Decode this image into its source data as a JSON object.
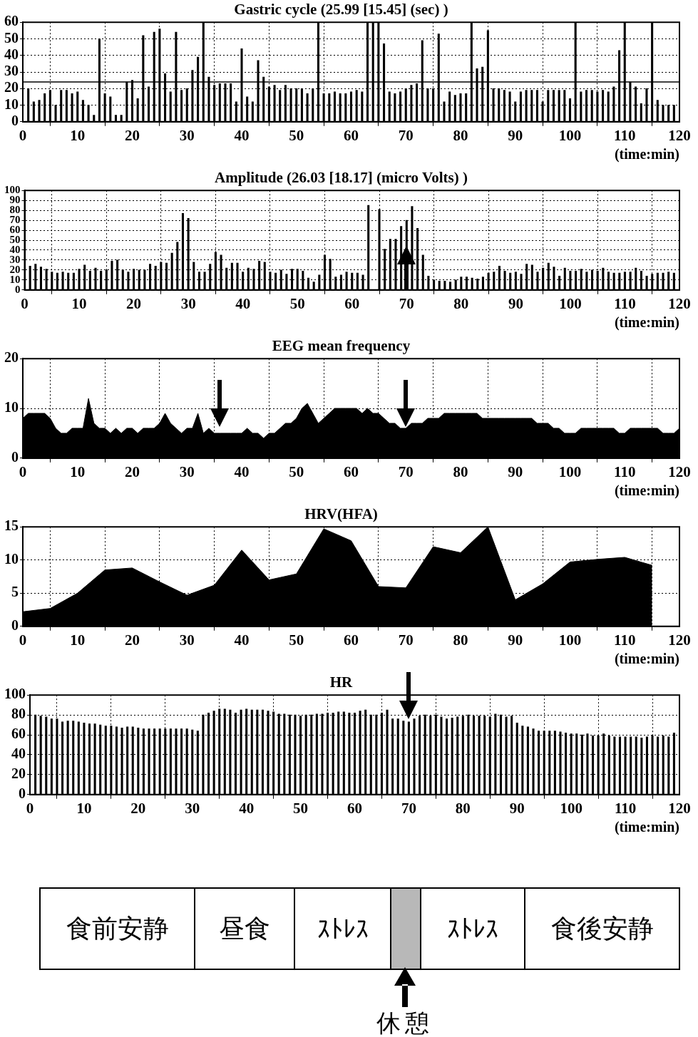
{
  "chart_data": [
    {
      "type": "bar",
      "title": "Gastric cycle (25.99 [15.45] (sec) )",
      "xlabel": "(time:min)",
      "color": "#000000",
      "grid": true,
      "legend": false,
      "xlim": [
        0,
        120
      ],
      "xticks": [
        0,
        10,
        20,
        30,
        40,
        50,
        60,
        70,
        80,
        90,
        100,
        110,
        120
      ],
      "ylim": [
        0,
        60
      ],
      "yticks": [
        0,
        10,
        20,
        30,
        40,
        50,
        60
      ],
      "ref_lines": [
        {
          "axis": "y",
          "value": 24,
          "color": "#000000"
        }
      ],
      "x": [
        1,
        2,
        3,
        4,
        5,
        6,
        7,
        8,
        9,
        10,
        11,
        12,
        13,
        14,
        15,
        16,
        17,
        18,
        19,
        20,
        21,
        22,
        23,
        24,
        25,
        26,
        27,
        28,
        29,
        30,
        31,
        32,
        33,
        34,
        35,
        36,
        37,
        38,
        39,
        40,
        41,
        42,
        43,
        44,
        45,
        46,
        47,
        48,
        49,
        50,
        51,
        52,
        53,
        54,
        55,
        56,
        57,
        58,
        59,
        60,
        61,
        62,
        63,
        64,
        65,
        66,
        67,
        68,
        69,
        70,
        71,
        72,
        73,
        74,
        75,
        76,
        77,
        78,
        79,
        80,
        81,
        82,
        83,
        84,
        85,
        86,
        87,
        88,
        89,
        90,
        91,
        92,
        93,
        94,
        95,
        96,
        97,
        98,
        99,
        100,
        101,
        102,
        103,
        104,
        105,
        106,
        107,
        108,
        109,
        110,
        111,
        112,
        113,
        114,
        115,
        116,
        117,
        118,
        119
      ],
      "values": [
        20,
        12,
        13,
        17,
        19,
        10,
        19,
        19,
        17,
        18,
        13,
        10,
        4,
        50,
        17,
        15,
        4,
        4,
        24,
        25,
        14,
        52,
        21,
        54,
        56,
        29,
        18,
        54,
        19,
        20,
        31,
        39,
        60,
        27,
        22,
        23,
        23,
        23,
        12,
        44,
        15,
        12,
        37,
        27,
        21,
        22,
        19,
        22,
        20,
        20,
        20,
        17,
        20,
        60,
        17,
        17,
        18,
        17,
        17,
        18,
        19,
        18,
        60,
        60,
        60,
        47,
        18,
        17,
        18,
        20,
        22,
        23,
        49,
        20,
        20,
        53,
        12,
        18,
        16,
        17,
        17,
        60,
        32,
        33,
        55,
        20,
        20,
        19,
        18,
        12,
        18,
        19,
        19,
        19,
        12,
        19,
        19,
        19,
        19,
        14,
        60,
        18,
        19,
        19,
        18,
        19,
        18,
        21,
        43,
        60,
        24,
        21,
        11,
        20,
        60,
        13,
        10,
        10,
        10
      ]
    },
    {
      "type": "bar",
      "title": "Amplitude (26.03 [18.17] (micro Volts) )",
      "xlabel": "(time:min)",
      "color": "#000000",
      "grid": true,
      "legend": false,
      "xlim": [
        0,
        120
      ],
      "xticks": [
        0,
        10,
        20,
        30,
        40,
        50,
        60,
        70,
        80,
        90,
        100,
        110,
        120
      ],
      "ylim": [
        0,
        100
      ],
      "yticks": [
        0,
        10,
        20,
        30,
        40,
        50,
        60,
        70,
        80,
        90,
        100
      ],
      "x": [
        1,
        2,
        3,
        4,
        5,
        6,
        7,
        8,
        9,
        10,
        11,
        12,
        13,
        14,
        15,
        16,
        17,
        18,
        19,
        20,
        21,
        22,
        23,
        24,
        25,
        26,
        27,
        28,
        29,
        30,
        31,
        32,
        33,
        34,
        35,
        36,
        37,
        38,
        39,
        40,
        41,
        42,
        43,
        44,
        45,
        46,
        47,
        48,
        49,
        50,
        51,
        52,
        53,
        54,
        55,
        56,
        57,
        58,
        59,
        60,
        61,
        62,
        63,
        64,
        65,
        66,
        67,
        68,
        69,
        70,
        71,
        72,
        73,
        74,
        75,
        76,
        77,
        78,
        79,
        80,
        81,
        82,
        83,
        84,
        85,
        86,
        87,
        88,
        89,
        90,
        91,
        92,
        93,
        94,
        95,
        96,
        97,
        98,
        99,
        100,
        101,
        102,
        103,
        104,
        105,
        106,
        107,
        108,
        109,
        110,
        111,
        112,
        113,
        114,
        115,
        116,
        117,
        118,
        119
      ],
      "values": [
        24,
        26,
        23,
        21,
        18,
        17,
        18,
        17,
        17,
        21,
        25,
        19,
        22,
        19,
        20,
        29,
        30,
        20,
        18,
        21,
        20,
        20,
        26,
        24,
        28,
        27,
        37,
        48,
        77,
        72,
        28,
        18,
        18,
        26,
        38,
        35,
        22,
        27,
        27,
        18,
        22,
        21,
        29,
        28,
        18,
        17,
        20,
        16,
        21,
        21,
        19,
        12,
        8,
        15,
        35,
        31,
        13,
        15,
        18,
        17,
        17,
        15,
        85,
        null,
        81,
        41,
        51,
        51,
        64,
        70,
        84,
        62,
        35,
        14,
        10,
        9,
        9,
        8,
        10,
        13,
        13,
        12,
        11,
        13,
        17,
        18,
        24,
        19,
        17,
        18,
        16,
        26,
        25,
        18,
        22,
        27,
        23,
        14,
        22,
        19,
        19,
        21,
        18,
        20,
        19,
        22,
        18,
        17,
        17,
        18,
        18,
        22,
        19,
        14,
        16,
        17,
        17,
        18,
        17
      ]
    },
    {
      "type": "area",
      "title": "EEG mean frequency",
      "xlabel": "(time:min)",
      "color": "#000000",
      "grid": true,
      "legend": false,
      "xlim": [
        0,
        120
      ],
      "xticks": [
        0,
        10,
        20,
        30,
        40,
        50,
        60,
        70,
        80,
        90,
        100,
        110,
        120
      ],
      "ylim": [
        0,
        20
      ],
      "yticks": [
        0,
        10,
        20
      ],
      "x": [
        0,
        1,
        2,
        3,
        4,
        5,
        6,
        7,
        8,
        9,
        10,
        11,
        12,
        13,
        14,
        15,
        16,
        17,
        18,
        19,
        20,
        21,
        22,
        23,
        24,
        25,
        26,
        27,
        28,
        29,
        30,
        31,
        32,
        33,
        34,
        35,
        36,
        37,
        38,
        39,
        40,
        41,
        42,
        43,
        44,
        45,
        46,
        47,
        48,
        49,
        50,
        51,
        52,
        53,
        54,
        55,
        56,
        57,
        58,
        59,
        60,
        61,
        62,
        63,
        64,
        65,
        66,
        67,
        68,
        69,
        70,
        71,
        72,
        73,
        74,
        75,
        76,
        77,
        78,
        79,
        80,
        81,
        82,
        83,
        84,
        85,
        86,
        87,
        88,
        89,
        90,
        91,
        92,
        93,
        94,
        95,
        96,
        97,
        98,
        99,
        100,
        101,
        102,
        103,
        104,
        105,
        106,
        107,
        108,
        109,
        110,
        111,
        112,
        113,
        114,
        115,
        116,
        117,
        118,
        119,
        120
      ],
      "values": [
        8,
        9,
        9,
        9,
        9,
        8,
        6,
        5,
        5,
        6,
        6,
        6,
        12,
        7,
        6,
        6,
        5,
        6,
        5,
        6,
        6,
        5,
        6,
        6,
        6,
        7,
        9,
        7,
        6,
        5,
        6,
        6,
        9,
        5,
        6,
        5,
        5,
        5,
        5,
        5,
        5,
        6,
        5,
        5,
        4,
        5,
        5,
        6,
        7,
        7,
        8,
        10,
        11,
        9,
        7,
        8,
        9,
        10,
        10,
        10,
        10,
        10,
        9,
        10,
        9,
        9,
        8,
        7,
        7,
        6,
        6,
        7,
        7,
        7,
        8,
        8,
        8,
        9,
        9,
        9,
        9,
        9,
        9,
        9,
        8,
        8,
        8,
        8,
        8,
        8,
        8,
        8,
        8,
        8,
        7,
        7,
        7,
        6,
        6,
        5,
        5,
        5,
        6,
        6,
        6,
        6,
        6,
        6,
        6,
        5,
        5,
        6,
        6,
        6,
        6,
        6,
        6,
        5,
        5,
        5,
        6
      ]
    },
    {
      "type": "area",
      "title": "HRV(HFA)",
      "xlabel": "(time:min)",
      "color": "#000000",
      "grid": true,
      "legend": false,
      "xlim": [
        0,
        120
      ],
      "xticks": [
        0,
        10,
        20,
        30,
        40,
        50,
        60,
        70,
        80,
        90,
        100,
        110,
        120
      ],
      "ylim": [
        0,
        15
      ],
      "yticks": [
        0,
        5,
        10,
        15
      ],
      "x": [
        0,
        5,
        10,
        15,
        20,
        25,
        30,
        35,
        40,
        45,
        50,
        55,
        60,
        65,
        70,
        75,
        80,
        85,
        90,
        95,
        100,
        105,
        110,
        115
      ],
      "values": [
        2.2,
        2.7,
        5,
        8.5,
        8.8,
        6.7,
        4.7,
        6.2,
        11.5,
        7,
        7.9,
        14.7,
        12.9,
        6,
        5.8,
        12,
        11.1,
        15,
        4,
        6.4,
        9.7,
        10.1,
        10.4,
        9.2
      ]
    },
    {
      "type": "bar",
      "title": "HR",
      "xlabel": "(time:min)",
      "color": "#000000",
      "grid": true,
      "legend": false,
      "xlim": [
        0,
        120
      ],
      "xticks": [
        0,
        10,
        20,
        30,
        40,
        50,
        60,
        70,
        80,
        90,
        100,
        110,
        120
      ],
      "ylim": [
        0,
        100
      ],
      "yticks": [
        0,
        20,
        40,
        60,
        80,
        100
      ],
      "x": [
        1,
        2,
        3,
        4,
        5,
        6,
        7,
        8,
        9,
        10,
        11,
        12,
        13,
        14,
        15,
        16,
        17,
        18,
        19,
        20,
        21,
        22,
        23,
        24,
        25,
        26,
        27,
        28,
        29,
        30,
        31,
        32,
        33,
        34,
        35,
        36,
        37,
        38,
        39,
        40,
        41,
        42,
        43,
        44,
        45,
        46,
        47,
        48,
        49,
        50,
        51,
        52,
        53,
        54,
        55,
        56,
        57,
        58,
        59,
        60,
        61,
        62,
        63,
        64,
        65,
        66,
        67,
        68,
        69,
        70,
        71,
        72,
        73,
        74,
        75,
        76,
        77,
        78,
        79,
        80,
        81,
        82,
        83,
        84,
        85,
        86,
        87,
        88,
        89,
        90,
        91,
        92,
        93,
        94,
        95,
        96,
        97,
        98,
        99,
        100,
        101,
        102,
        103,
        104,
        105,
        106,
        107,
        108,
        109,
        110,
        111,
        112,
        113,
        114,
        115,
        116,
        117,
        118,
        119
      ],
      "values": [
        80,
        79,
        78,
        76,
        76,
        73,
        74,
        74,
        73,
        72,
        71,
        71,
        70,
        69,
        69,
        68,
        67,
        68,
        68,
        67,
        66,
        66,
        66,
        66,
        66,
        66,
        66,
        66,
        66,
        65,
        64,
        80,
        82,
        84,
        86,
        86,
        85,
        82,
        85,
        86,
        85,
        85,
        85,
        84,
        83,
        81,
        81,
        80,
        80,
        79,
        80,
        80,
        81,
        81,
        82,
        82,
        83,
        83,
        82,
        82,
        84,
        85,
        80,
        80,
        82,
        85,
        76,
        76,
        74,
        73,
        76,
        79,
        80,
        79,
        80,
        78,
        76,
        77,
        78,
        79,
        80,
        79,
        79,
        79,
        78,
        81,
        80,
        78,
        79,
        72,
        69,
        68,
        66,
        64,
        64,
        64,
        64,
        63,
        62,
        61,
        61,
        60,
        61,
        59,
        59,
        61,
        59,
        58,
        58,
        58,
        58,
        58,
        57,
        58,
        59,
        58,
        59,
        58,
        62
      ]
    },
    {
      "type": "other",
      "categories": [
        "食前安静",
        "昼食",
        "ｽﾄﾚｽ",
        null,
        "ｽﾄﾚｽ",
        "食後安静"
      ],
      "colors": [
        "#ffffff",
        "#ffffff",
        "#ffffff",
        "#b8b8b8",
        "#ffffff",
        "#ffffff"
      ],
      "annotations": [
        "休憩"
      ]
    }
  ]
}
